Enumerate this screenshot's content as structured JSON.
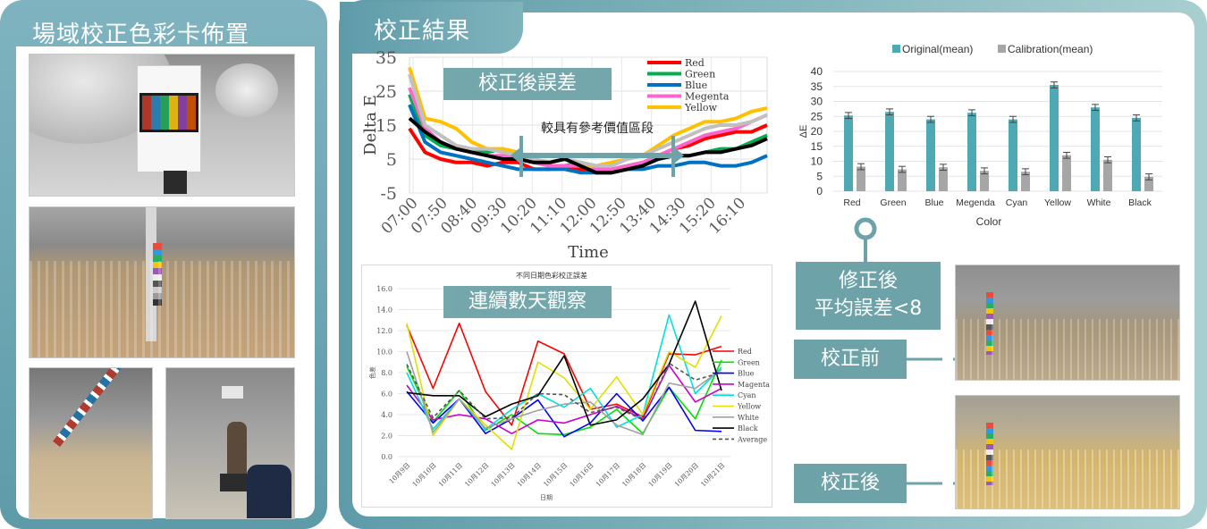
{
  "left_panel": {
    "title": "場域校正色彩卡佈置"
  },
  "right_panel": {
    "title": "校正結果"
  },
  "labels": {
    "after_error": "校正後誤差",
    "reference_period": "較具有參考價值區段",
    "continuous_days": "連續數天觀察",
    "avg_error_line1": "修正後",
    "avg_error_line2": "平均誤差<8",
    "before": "校正前",
    "after": "校正後"
  },
  "chart_data": [
    {
      "type": "line",
      "xlabel": "Time",
      "ylabel": "Delta E",
      "ylim": [
        -5,
        35
      ],
      "yticks": [
        "35",
        "25",
        "15",
        "5",
        "-5"
      ],
      "xticks": [
        "07:00",
        "07:50",
        "08:40",
        "09:30",
        "10:20",
        "11:10",
        "12:00",
        "12:50",
        "13:40",
        "14:30",
        "15:20",
        "16:10"
      ],
      "series": [
        {
          "name": "Red",
          "color": "#ff0000",
          "values": [
            14,
            7,
            5,
            4,
            4,
            3,
            4,
            4,
            2,
            2,
            3,
            2,
            1,
            1,
            2,
            3,
            6,
            8,
            9,
            11,
            12,
            13,
            13,
            15
          ]
        },
        {
          "name": "Green",
          "color": "#00b050",
          "values": [
            24,
            12,
            9,
            8,
            7,
            7,
            8,
            6,
            4,
            3,
            3,
            4,
            3,
            2,
            3,
            4,
            5,
            6,
            6,
            7,
            8,
            8,
            10,
            12
          ]
        },
        {
          "name": "Blue",
          "color": "#0070c0",
          "values": [
            21,
            10,
            7,
            6,
            5,
            4,
            3,
            2,
            2,
            2,
            2,
            1,
            1,
            1,
            2,
            2,
            3,
            3,
            4,
            4,
            3,
            3,
            4,
            6
          ]
        },
        {
          "name": "Megenta",
          "color": "#ff66cc",
          "values": [
            26,
            14,
            10,
            8,
            7,
            6,
            6,
            5,
            4,
            3,
            3,
            3,
            2,
            2,
            3,
            4,
            6,
            8,
            10,
            12,
            13,
            14,
            16,
            18
          ]
        },
        {
          "name": "Yellow",
          "color": "#ffc000",
          "values": [
            32,
            17,
            16,
            14,
            10,
            8,
            8,
            7,
            5,
            4,
            5,
            3,
            3,
            4,
            5,
            6,
            9,
            12,
            14,
            16,
            16,
            17,
            19,
            20
          ]
        },
        {
          "name": "",
          "color": "#c0c0c0",
          "values": [
            30,
            15,
            12,
            9,
            8,
            8,
            7,
            6,
            5,
            4,
            5,
            4,
            3,
            3,
            5,
            6,
            8,
            10,
            12,
            14,
            15,
            15,
            16,
            18
          ]
        },
        {
          "name": "",
          "color": "#000000",
          "values": [
            17,
            13,
            10,
            8,
            7,
            6,
            5,
            5,
            4,
            4,
            5,
            3,
            1,
            1,
            2,
            3,
            5,
            6,
            6,
            7,
            7,
            8,
            9,
            11
          ]
        }
      ]
    },
    {
      "type": "bar",
      "xlabel": "Color",
      "ylabel": "ΔE",
      "ylim": [
        0,
        40
      ],
      "yticks": [
        "40",
        "35",
        "30",
        "25",
        "20",
        "15",
        "10",
        "5",
        "0"
      ],
      "categories": [
        "Red",
        "Green",
        "Blue",
        "Megenda",
        "Cyan",
        "Yellow",
        "White",
        "Black"
      ],
      "series": [
        {
          "name": "Original(mean)",
          "color": "#4fa9b5",
          "values": [
            25.3,
            26.5,
            24,
            26.2,
            24,
            35.5,
            28,
            24.5
          ]
        },
        {
          "name": "Calibration(mean)",
          "color": "#a6a6a6",
          "values": [
            8.2,
            7.3,
            8,
            6.8,
            6.5,
            12,
            10.5,
            4.8
          ]
        }
      ],
      "legend": "top"
    },
    {
      "type": "line",
      "title": "不同日期色彩校正誤差",
      "xlabel": "日期",
      "ylabel": "色差",
      "ylim": [
        0,
        16
      ],
      "yticks": [
        "16.0",
        "14.0",
        "12.0",
        "10.0",
        "8.0",
        "6.0",
        "4.0",
        "2.0",
        "0.0"
      ],
      "categories": [
        "10月9日",
        "10月10日",
        "10月11日",
        "10月12日",
        "10月13日",
        "10月14日",
        "10月15日",
        "10月16日",
        "10月17日",
        "10月18日",
        "10月19日",
        "10月20日",
        "10月21日"
      ],
      "series": [
        {
          "name": "Red",
          "color": "#ff0000",
          "dash": false,
          "values": [
            12.5,
            6.5,
            12.7,
            6.2,
            3.0,
            11.0,
            9.8,
            4.5,
            5.0,
            3.8,
            9.8,
            9.7,
            10.5
          ]
        },
        {
          "name": "Green",
          "color": "#00e000",
          "dash": false,
          "values": [
            8.6,
            3.3,
            6.3,
            2.5,
            4.0,
            2.2,
            2.1,
            2.8,
            4.5,
            2.2,
            6.6,
            3.6,
            9.2
          ]
        },
        {
          "name": "Blue",
          "color": "#0000ff",
          "dash": false,
          "values": [
            6.2,
            3.2,
            5.5,
            2.2,
            3.6,
            5.4,
            1.9,
            3.2,
            6.0,
            3.4,
            6.6,
            2.5,
            2.4
          ]
        },
        {
          "name": "Magenta",
          "color": "#cc00cc",
          "dash": false,
          "values": [
            6.8,
            3.5,
            4.0,
            3.6,
            2.2,
            3.5,
            3.2,
            4.0,
            4.8,
            3.6,
            8.7,
            5.2,
            6.5
          ]
        },
        {
          "name": "Cyan",
          "color": "#00e0e0",
          "dash": false,
          "values": [
            8.0,
            2.6,
            5.5,
            2.6,
            4.5,
            6.0,
            4.7,
            6.5,
            2.8,
            4.0,
            13.5,
            6.0,
            8.5
          ]
        },
        {
          "name": "Yellow",
          "color": "#e0e000",
          "dash": false,
          "values": [
            12.7,
            2.0,
            5.5,
            3.0,
            0.7,
            9.0,
            7.5,
            4.5,
            7.6,
            4.0,
            10.0,
            8.5,
            13.4
          ]
        },
        {
          "name": "White",
          "color": "#a0a0a0",
          "dash": false,
          "values": [
            10.0,
            2.3,
            5.5,
            2.7,
            3.6,
            4.4,
            5.0,
            5.2,
            3.0,
            2.1,
            7.0,
            6.5,
            8.3
          ]
        },
        {
          "name": "Black",
          "color": "#000000",
          "dash": false,
          "values": [
            6.1,
            5.8,
            5.8,
            3.8,
            5.0,
            5.8,
            9.6,
            3.0,
            3.5,
            5.5,
            8.8,
            14.8,
            6.3
          ]
        },
        {
          "name": "Average",
          "color": "#555555",
          "dash": true,
          "values": [
            8.8,
            3.7,
            6.3,
            3.6,
            3.7,
            6.0,
            5.9,
            4.2,
            4.7,
            3.5,
            8.9,
            7.3,
            8.0
          ]
        }
      ]
    }
  ]
}
